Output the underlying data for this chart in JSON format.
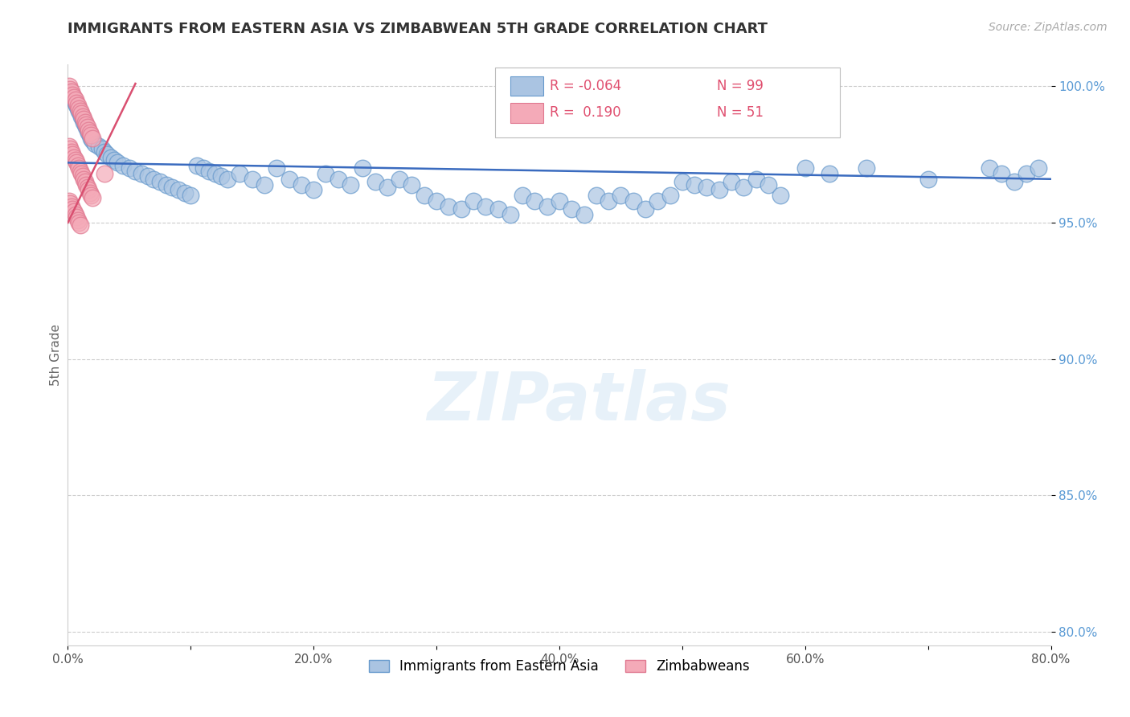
{
  "title": "IMMIGRANTS FROM EASTERN ASIA VS ZIMBABWEAN 5TH GRADE CORRELATION CHART",
  "source_text": "Source: ZipAtlas.com",
  "ylabel": "5th Grade",
  "xlim": [
    0.0,
    0.8
  ],
  "ylim": [
    0.795,
    1.008
  ],
  "xtick_labels": [
    "0.0%",
    "",
    "20.0%",
    "",
    "40.0%",
    "",
    "60.0%",
    "",
    "80.0%"
  ],
  "xtick_vals": [
    0.0,
    0.1,
    0.2,
    0.3,
    0.4,
    0.5,
    0.6,
    0.7,
    0.8
  ],
  "ytick_labels": [
    "100.0%",
    "95.0%",
    "90.0%",
    "85.0%",
    "80.0%"
  ],
  "ytick_vals": [
    1.0,
    0.95,
    0.9,
    0.85,
    0.8
  ],
  "blue_R": "-0.064",
  "blue_N": "99",
  "pink_R": "0.190",
  "pink_N": "51",
  "blue_color": "#aac4e2",
  "blue_edge": "#6699cc",
  "pink_color": "#f4aab8",
  "pink_edge": "#e07890",
  "blue_line_color": "#3a6bbf",
  "pink_line_color": "#d94f70",
  "legend_blue_label": "Immigrants from Eastern Asia",
  "legend_pink_label": "Zimbabweans",
  "blue_scatter_x": [
    0.002,
    0.003,
    0.004,
    0.005,
    0.006,
    0.007,
    0.008,
    0.009,
    0.01,
    0.011,
    0.012,
    0.013,
    0.014,
    0.015,
    0.016,
    0.017,
    0.018,
    0.019,
    0.02,
    0.022,
    0.025,
    0.028,
    0.03,
    0.032,
    0.035,
    0.038,
    0.04,
    0.045,
    0.05,
    0.055,
    0.06,
    0.065,
    0.07,
    0.075,
    0.08,
    0.085,
    0.09,
    0.095,
    0.1,
    0.105,
    0.11,
    0.115,
    0.12,
    0.125,
    0.13,
    0.14,
    0.15,
    0.16,
    0.17,
    0.18,
    0.19,
    0.2,
    0.21,
    0.22,
    0.23,
    0.24,
    0.25,
    0.26,
    0.27,
    0.28,
    0.29,
    0.3,
    0.31,
    0.32,
    0.33,
    0.34,
    0.35,
    0.36,
    0.37,
    0.38,
    0.39,
    0.4,
    0.41,
    0.42,
    0.43,
    0.44,
    0.45,
    0.46,
    0.47,
    0.48,
    0.49,
    0.5,
    0.51,
    0.52,
    0.53,
    0.54,
    0.55,
    0.56,
    0.57,
    0.58,
    0.6,
    0.62,
    0.65,
    0.7,
    0.75,
    0.76,
    0.77,
    0.78,
    0.79
  ],
  "blue_scatter_y": [
    0.998,
    0.997,
    0.996,
    0.995,
    0.994,
    0.993,
    0.992,
    0.991,
    0.99,
    0.989,
    0.988,
    0.987,
    0.986,
    0.985,
    0.984,
    0.983,
    0.982,
    0.981,
    0.98,
    0.979,
    0.978,
    0.977,
    0.976,
    0.975,
    0.974,
    0.973,
    0.972,
    0.971,
    0.97,
    0.969,
    0.968,
    0.967,
    0.966,
    0.965,
    0.964,
    0.963,
    0.962,
    0.961,
    0.96,
    0.971,
    0.97,
    0.969,
    0.968,
    0.967,
    0.966,
    0.968,
    0.966,
    0.964,
    0.97,
    0.966,
    0.964,
    0.962,
    0.968,
    0.966,
    0.964,
    0.97,
    0.965,
    0.963,
    0.966,
    0.964,
    0.96,
    0.958,
    0.956,
    0.955,
    0.958,
    0.956,
    0.955,
    0.953,
    0.96,
    0.958,
    0.956,
    0.958,
    0.955,
    0.953,
    0.96,
    0.958,
    0.96,
    0.958,
    0.955,
    0.958,
    0.96,
    0.965,
    0.964,
    0.963,
    0.962,
    0.965,
    0.963,
    0.966,
    0.964,
    0.96,
    0.97,
    0.968,
    0.97,
    0.966,
    0.97,
    0.968,
    0.965,
    0.968,
    0.97
  ],
  "pink_scatter_x": [
    0.001,
    0.002,
    0.003,
    0.004,
    0.005,
    0.006,
    0.007,
    0.008,
    0.009,
    0.01,
    0.011,
    0.012,
    0.013,
    0.014,
    0.015,
    0.016,
    0.017,
    0.018,
    0.019,
    0.02,
    0.001,
    0.002,
    0.003,
    0.004,
    0.005,
    0.006,
    0.007,
    0.008,
    0.009,
    0.01,
    0.011,
    0.012,
    0.013,
    0.014,
    0.015,
    0.016,
    0.017,
    0.018,
    0.019,
    0.02,
    0.001,
    0.002,
    0.003,
    0.004,
    0.005,
    0.006,
    0.007,
    0.008,
    0.009,
    0.01,
    0.03
  ],
  "pink_scatter_y": [
    1.0,
    0.999,
    0.998,
    0.997,
    0.996,
    0.995,
    0.994,
    0.993,
    0.992,
    0.991,
    0.99,
    0.989,
    0.988,
    0.987,
    0.986,
    0.985,
    0.984,
    0.983,
    0.982,
    0.981,
    0.978,
    0.977,
    0.976,
    0.975,
    0.974,
    0.973,
    0.972,
    0.971,
    0.97,
    0.969,
    0.968,
    0.967,
    0.966,
    0.965,
    0.964,
    0.963,
    0.962,
    0.961,
    0.96,
    0.959,
    0.958,
    0.957,
    0.956,
    0.955,
    0.954,
    0.953,
    0.952,
    0.951,
    0.95,
    0.949,
    0.968
  ],
  "blue_trend_x": [
    0.0,
    0.8
  ],
  "blue_trend_y": [
    0.972,
    0.966
  ],
  "pink_trend_x": [
    0.0,
    0.055
  ],
  "pink_trend_y": [
    0.95,
    1.001
  ],
  "watermark_text": "ZIPatlas",
  "figsize": [
    14.06,
    8.92
  ],
  "dpi": 100
}
